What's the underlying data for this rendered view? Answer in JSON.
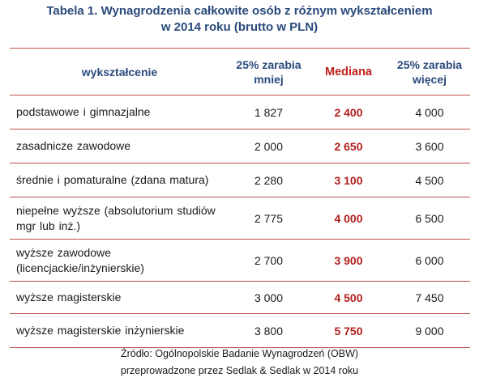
{
  "title": {
    "line1": "Tabela 1. Wynagrodzenia całkowite osób z różnym wykształceniem",
    "line2": "w 2014 roku (brutto w PLN)"
  },
  "table": {
    "headers": {
      "education": "wykształcenie",
      "p25": "25% zarabia mniej",
      "median": "Mediana",
      "p75": "25% zarabia więcej"
    },
    "rows": [
      {
        "education": "podstawowe i gimnazjalne",
        "p25": "1 827",
        "median": "2 400",
        "p75": "4 000"
      },
      {
        "education": "zasadnicze zawodowe",
        "p25": "2 000",
        "median": "2 650",
        "p75": "3 600"
      },
      {
        "education": "średnie i pomaturalne (zdana matura)",
        "p25": "2 280",
        "median": "3 100",
        "p75": "4 500"
      },
      {
        "education": "niepełne wyższe (absolutorium studiów mgr lub inż.)",
        "p25": "2 775",
        "median": "4 000",
        "p75": "6 500"
      },
      {
        "education": "wyższe zawodowe (licencjackie/inżynierskie)",
        "p25": "2 700",
        "median": "3 900",
        "p75": "6 000"
      },
      {
        "education": "wyższe magisterskie",
        "p25": "3 000",
        "median": "4 500",
        "p75": "7 450"
      },
      {
        "education": "wyższe magisterskie inżynierskie",
        "p25": "3 800",
        "median": "5 750",
        "p75": "9 000"
      }
    ]
  },
  "source": {
    "line1": "Źródło: Ogólnopolskie Badanie Wynagrodzeń (OBW)",
    "line2": "przeprowadzone przez Sedlak & Sedlak w 2014 roku"
  },
  "colors": {
    "title": "#2a4a7c",
    "median": "#b21e1c",
    "rule": "#c0504d"
  }
}
